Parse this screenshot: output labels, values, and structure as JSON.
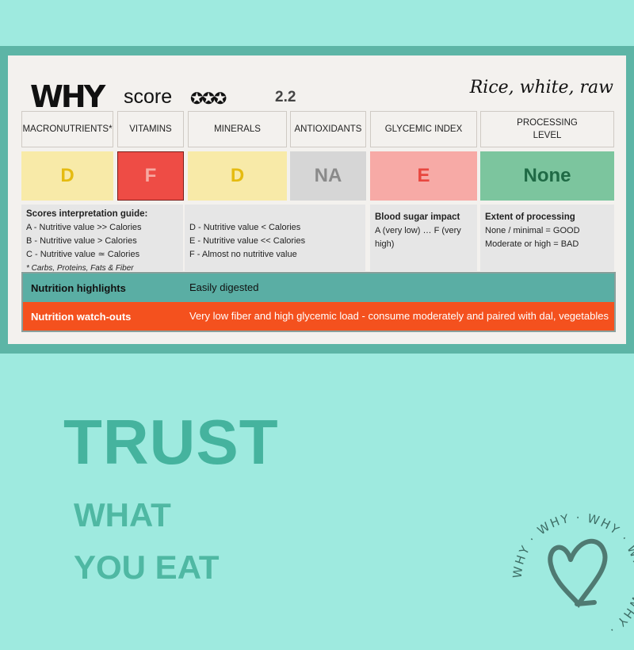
{
  "header": {
    "logo": "WHY",
    "logo_amp": "&",
    "score_label": "score",
    "score_stars": "✪✪✪",
    "score_value": "2.2",
    "food_name": "Rice, white, raw"
  },
  "categories": [
    {
      "label": "MACRONUTRIENTS*",
      "grade": "D",
      "bg": "#f8eaa8",
      "fg": "#e5bb10"
    },
    {
      "label": "VITAMINS",
      "grade": "F",
      "bg": "#ee4c45",
      "fg": "#f7aaa2"
    },
    {
      "label": "MINERALS",
      "grade": "D",
      "bg": "#f8eaa8",
      "fg": "#e5bb10"
    },
    {
      "label": "ANTIOXIDANTS",
      "grade": "NA",
      "bg": "#d6d6d6",
      "fg": "#8a8a8a"
    },
    {
      "label": "GLYCEMIC INDEX",
      "grade": "E",
      "bg": "#f7aaa6",
      "fg": "#e8473f"
    },
    {
      "label": "PROCESSING LEVEL",
      "grade": "None",
      "bg": "#7cc59e",
      "fg": "#1f6a45"
    }
  ],
  "guide": {
    "title": "Scores interpretation guide:",
    "a": "A - Nutritive value >> Calories",
    "b": "B - Nutritive value > Calories",
    "c": "C - Nutritive value ≃ Calories",
    "note": "* Carbs, Proteins, Fats & Fiber",
    "d": "D - Nutritive value < Calories",
    "e": "E - Nutritive value << Calories",
    "f": "F - Almost no nutritive value",
    "gi_title": "Blood sugar impact",
    "gi_text": "A (very low) … F (very high)",
    "proc_title": "Extent of processing",
    "proc_good": "None / minimal = GOOD",
    "proc_bad": "Moderate or high = BAD"
  },
  "highlights": {
    "label": "Nutrition highlights",
    "text": "Easily digested",
    "color": "#5aaea4"
  },
  "watchouts": {
    "label": "Nutrition watch-outs",
    "text": "Very low fiber and high glycemic load - consume moderately and paired with dal, vegetables",
    "color": "#f4511e"
  },
  "tagline": {
    "line1": "TRUST",
    "line2": "WHAT",
    "line3": "YOU EAT"
  },
  "badge": {
    "ring_text": "WHY · WHY · WHY · WHY · WHY · ",
    "icon": "heart-icon"
  }
}
